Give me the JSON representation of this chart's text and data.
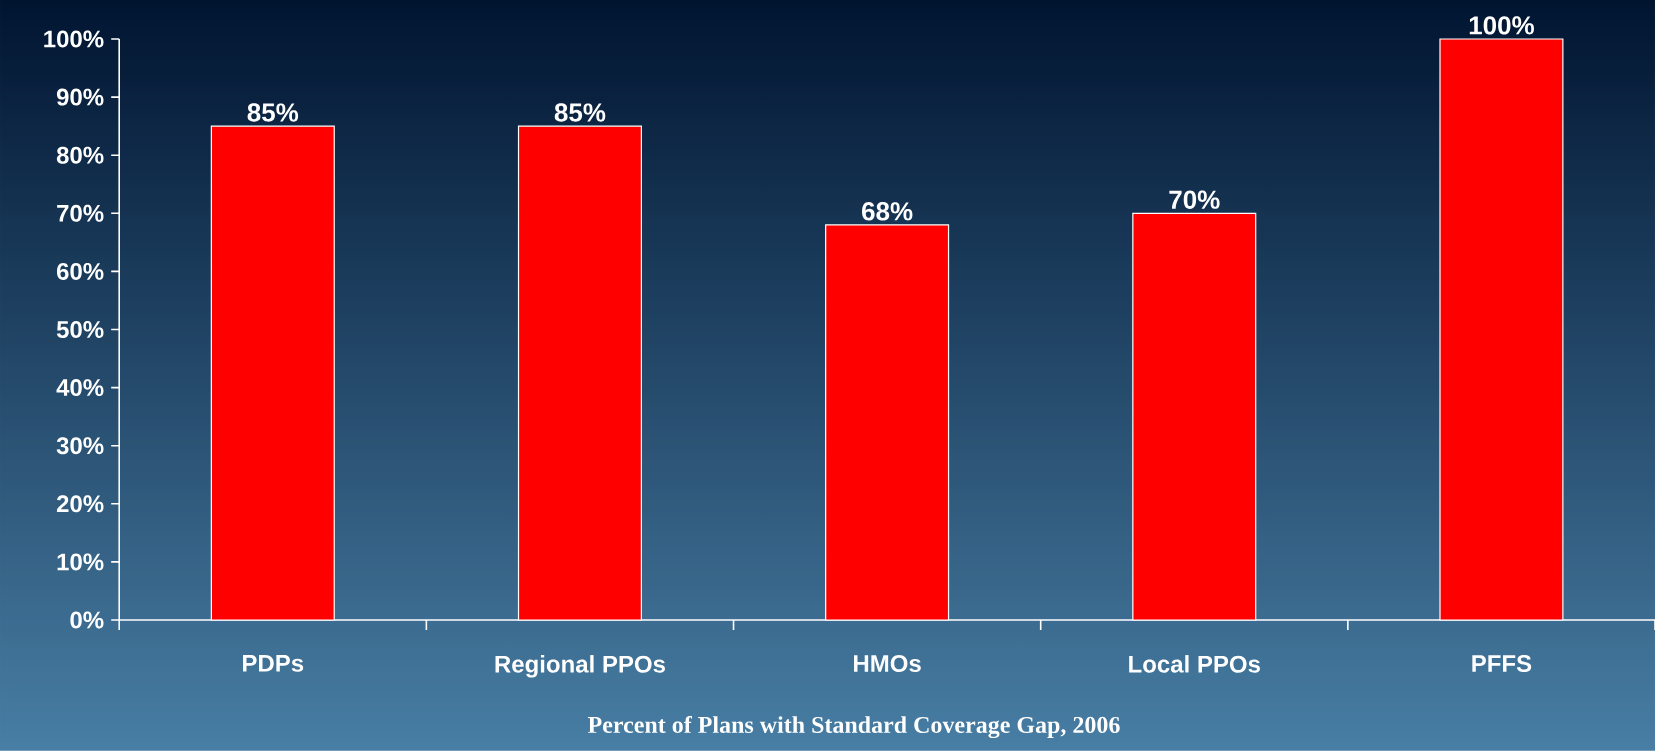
{
  "chart_data": {
    "type": "bar",
    "xlabel": "Percent of Plans with Standard Coverage Gap, 2006",
    "categories": [
      "PDPs",
      "Regional PPOs",
      "HMOs",
      "Local PPOs",
      "PFFS"
    ],
    "values": [
      85,
      85,
      68,
      70,
      100
    ],
    "color": "#ff0000",
    "value_labels": [
      "85%",
      "85%",
      "68%",
      "70%",
      "100%"
    ],
    "ylim": [
      0,
      100
    ],
    "yticks": [
      {
        "value": 0,
        "label": "0%"
      },
      {
        "value": 10,
        "label": "10%"
      },
      {
        "value": 20,
        "label": "20%"
      },
      {
        "value": 30,
        "label": "30%"
      },
      {
        "value": 40,
        "label": "40%"
      },
      {
        "value": 50,
        "label": "50%"
      },
      {
        "value": 60,
        "label": "60%"
      },
      {
        "value": 70,
        "label": "70%"
      },
      {
        "value": 80,
        "label": "80%"
      },
      {
        "value": 90,
        "label": "90%"
      },
      {
        "value": 100,
        "label": "100%"
      }
    ]
  }
}
